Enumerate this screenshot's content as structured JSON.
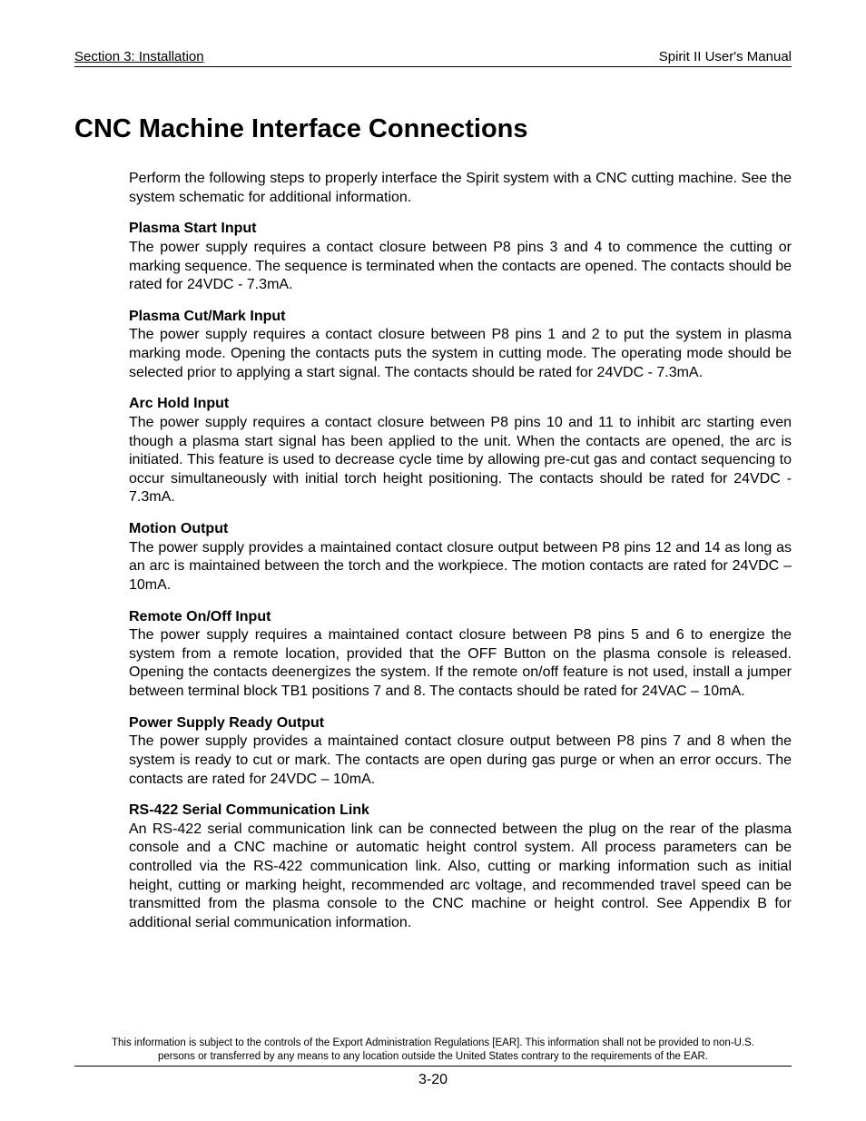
{
  "header": {
    "left": "Section 3: Installation",
    "right": "Spirit II User's Manual"
  },
  "title": "CNC Machine Interface Connections",
  "intro": "Perform the following steps to properly interface the Spirit system with a CNC cutting machine.  See the system schematic for additional information.",
  "sections": [
    {
      "heading": "Plasma Start Input",
      "body": "The power supply requires a contact closure between P8 pins 3 and 4 to commence the cutting or marking sequence.  The sequence is terminated when the contacts are opened.  The contacts should be rated for 24VDC - 7.3mA."
    },
    {
      "heading": "Plasma Cut/Mark Input",
      "body": "The power supply requires a contact closure between P8 pins 1 and 2 to put the system in plasma marking mode.  Opening the contacts puts the system in cutting mode.  The operating mode should be selected prior to applying a start signal.  The contacts should be rated for 24VDC - 7.3mA."
    },
    {
      "heading": "Arc Hold Input",
      "body": "The power supply requires a contact closure between P8 pins 10 and 11 to inhibit arc starting even though a plasma start signal has been applied to the unit.  When the contacts are opened, the arc is initiated.  This feature is used to decrease cycle time by allowing pre-cut gas and contact sequencing to occur simultaneously with initial torch height positioning.  The contacts should be rated for 24VDC - 7.3mA."
    },
    {
      "heading": "Motion Output",
      "body": "The power supply provides a maintained contact closure output between P8 pins 12 and 14 as long as an arc is maintained between the torch and the workpiece.  The motion contacts are rated for 24VDC – 10mA."
    },
    {
      "heading": "Remote On/Off Input",
      "body": "The power supply requires a maintained contact closure between P8 pins 5 and 6 to energize the system from a remote location, provided that the OFF Button on the plasma console is released.  Opening the contacts deenergizes the system.  If the remote on/off feature is not used, install a jumper between terminal block TB1 positions 7 and 8.  The contacts should be rated for 24VAC – 10mA."
    },
    {
      "heading": "Power Supply Ready Output",
      "body": "The power supply provides a maintained contact closure output between P8 pins 7 and 8 when the system is ready to cut or mark.  The contacts are open during gas purge or when an error occurs.  The contacts are rated for 24VDC – 10mA."
    },
    {
      "heading": "RS-422 Serial Communication Link",
      "body": "An RS-422 serial communication link can be connected between the plug on the rear of the plasma console and a CNC machine or automatic height control system.  All process parameters can be controlled via the RS-422 communication link.  Also, cutting or marking information such as initial height, cutting or marking height, recommended arc voltage, and recommended travel speed can be transmitted from the plasma console to the CNC machine or height control.  See Appendix B for additional serial communication information."
    }
  ],
  "footer": {
    "note": "This information is subject to the controls of the Export Administration Regulations [EAR].  This information shall not be provided to non-U.S. persons or transferred by any means to any location outside the United States contrary to the requirements of the EAR.",
    "page": "3-20"
  }
}
